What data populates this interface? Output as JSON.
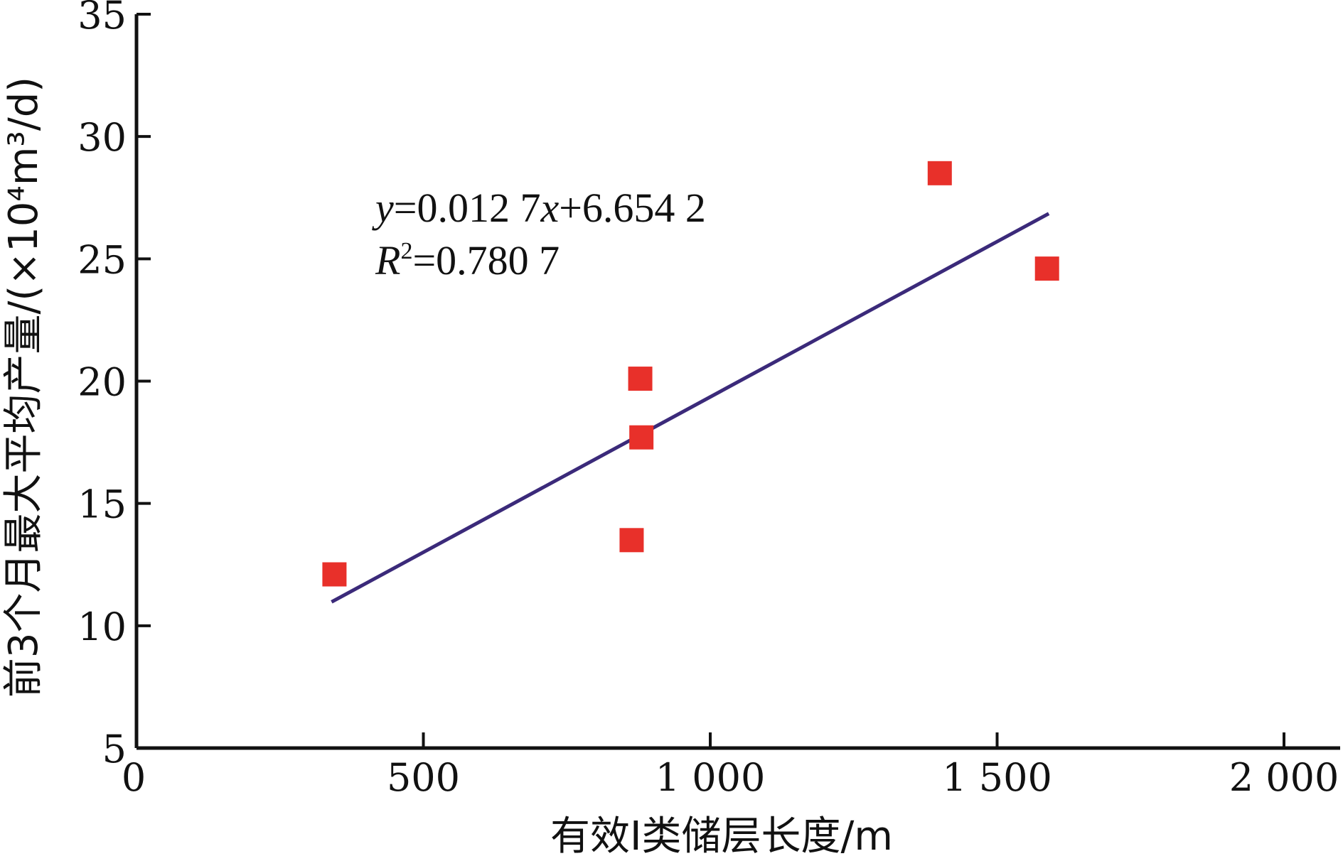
{
  "chart_data": {
    "type": "scatter",
    "xlabel": "有效Ⅰ类储层长度/m",
    "ylabel": "前3个月最大平均产量/(×10⁴m³/d)",
    "xlim": [
      0,
      2100
    ],
    "ylim": [
      5,
      35
    ],
    "x_ticks": [
      0,
      500,
      1000,
      1500,
      2000
    ],
    "x_tick_labels": [
      "0",
      "500",
      "1 000",
      "1 500",
      "2 000"
    ],
    "y_ticks": [
      5,
      10,
      15,
      20,
      25,
      30,
      35
    ],
    "y_tick_labels": [
      "5",
      "10",
      "15",
      "20",
      "25",
      "30",
      "35"
    ],
    "marker": "square",
    "marker_color": "#e8302a",
    "line_color": "#3b2a7a",
    "points": [
      {
        "x": 345,
        "y": 12.1
      },
      {
        "x": 863,
        "y": 13.5
      },
      {
        "x": 880,
        "y": 17.7
      },
      {
        "x": 878,
        "y": 20.1
      },
      {
        "x": 1400,
        "y": 28.5
      },
      {
        "x": 1587,
        "y": 24.6
      }
    ],
    "trendline": {
      "slope": 0.0127,
      "intercept": 6.6542,
      "x_start": 340,
      "x_end": 1590,
      "equation_prefix": "y",
      "equation_body": "=0.012 7",
      "equation_var": "x",
      "equation_rest": "+6.654 2",
      "r2_symbol": "R",
      "r2_exp": "2",
      "r2_value": "=0.780 7"
    }
  }
}
